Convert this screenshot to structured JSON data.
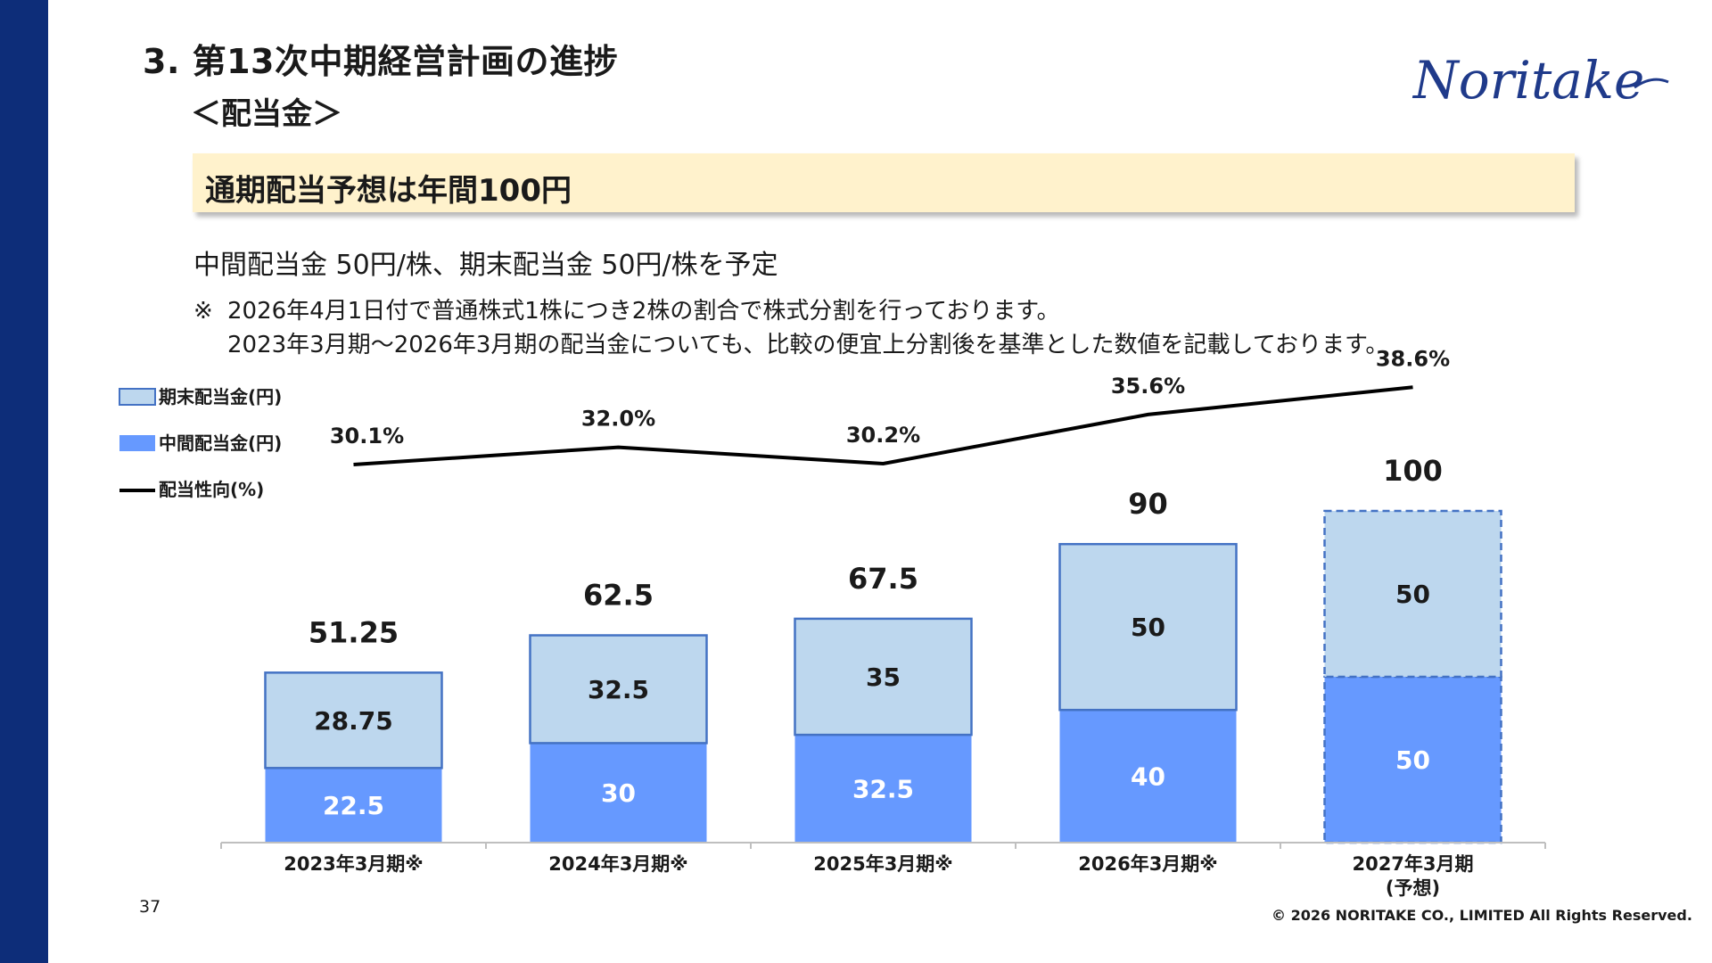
{
  "slide": {
    "title": "3. 第13次中期経営計画の進捗",
    "subtitle": "＜配当金＞",
    "callout": "通期配当予想は年間100円",
    "body": "中間配当金 50円/株、期末配当金 50円/株を予定",
    "note_mark": "※",
    "note_line1": "2026年4月1日付で普通株式1株につき2株の割合で株式分割を行っております。",
    "note_line2": "2023年3月期～2026年3月期の配当金についても、比較の便宜上分割後を基準とした数値を記載しております。",
    "page_number": "37",
    "copyright": "© 2026 NORITAKE CO., LIMITED All Rights Reserved.",
    "logo_text": "Noritake"
  },
  "colors": {
    "sidebar": "#0d2d79",
    "callout_bg": "#fff2cc",
    "year_end_fill": "#bdd7ee",
    "interim_fill": "#6699ff",
    "bar_border": "#4472c4",
    "payout_line": "#000000",
    "logo": "#1f3a8a"
  },
  "chart_data": {
    "type": "bar",
    "stacked": true,
    "categories": [
      "2023年3月期※",
      "2024年3月期※",
      "2025年3月期※",
      "2026年3月期※",
      "2027年3月期\n(予想)"
    ],
    "series": [
      {
        "name": "中間配当金(円)",
        "values": [
          22.5,
          30,
          32.5,
          40,
          50
        ],
        "labels": [
          "22.5",
          "30",
          "32.5",
          "40",
          "50"
        ]
      },
      {
        "name": "期末配当金(円)",
        "values": [
          28.75,
          32.5,
          35,
          50,
          50
        ],
        "labels": [
          "28.75",
          "32.5",
          "35",
          "50",
          "50"
        ]
      }
    ],
    "totals": [
      51.25,
      62.5,
      67.5,
      90,
      100
    ],
    "total_labels": [
      "51.25",
      "62.5",
      "67.5",
      "90",
      "100"
    ],
    "forecast_index": 4,
    "line_series": {
      "name": "配当性向(%)",
      "values": [
        30.1,
        32.0,
        30.2,
        35.6,
        38.6
      ],
      "labels": [
        "30.1%",
        "32.0%",
        "30.2%",
        "35.6%",
        "38.6%"
      ]
    },
    "legend_position": "top-left",
    "grid": false,
    "ylim": [
      0,
      100
    ]
  }
}
